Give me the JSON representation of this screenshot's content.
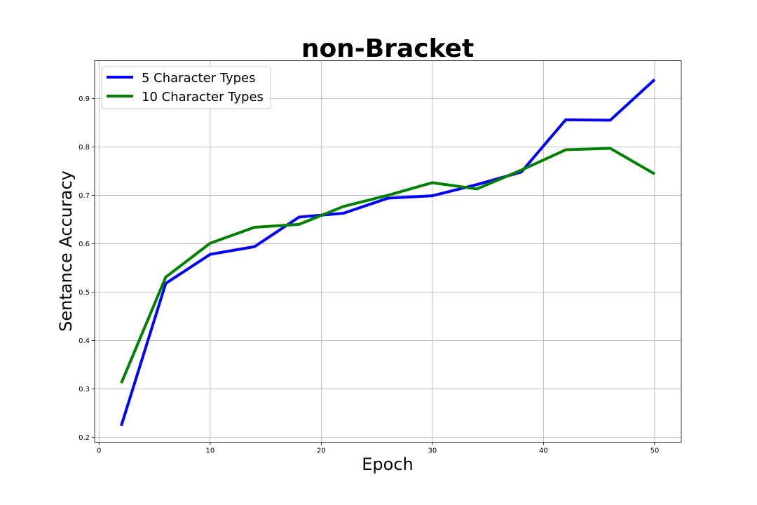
{
  "chart_data": {
    "type": "line",
    "title": "non-Bracket",
    "xlabel": "Epoch",
    "ylabel": "Sentance Accuracy",
    "xlim": [
      -0.4,
      52.4
    ],
    "ylim": [
      0.19,
      0.978
    ],
    "xticks": [
      0,
      10,
      20,
      30,
      40,
      50
    ],
    "yticks": [
      0.2,
      0.3,
      0.4,
      0.5,
      0.6,
      0.7,
      0.8,
      0.9
    ],
    "grid": true,
    "legend_position": "top-left",
    "x": [
      2,
      6,
      10,
      14,
      18,
      22,
      26,
      30,
      34,
      38,
      42,
      46,
      50
    ],
    "series": [
      {
        "name": "5 Character Types",
        "color": "#0000ff",
        "values": [
          0.224,
          0.518,
          0.578,
          0.594,
          0.655,
          0.663,
          0.694,
          0.699,
          0.722,
          0.748,
          0.856,
          0.855,
          0.939
        ]
      },
      {
        "name": "10 Character Types",
        "color": "#008000",
        "values": [
          0.312,
          0.531,
          0.601,
          0.634,
          0.64,
          0.677,
          0.7,
          0.726,
          0.713,
          0.752,
          0.794,
          0.797,
          0.744
        ]
      }
    ]
  }
}
